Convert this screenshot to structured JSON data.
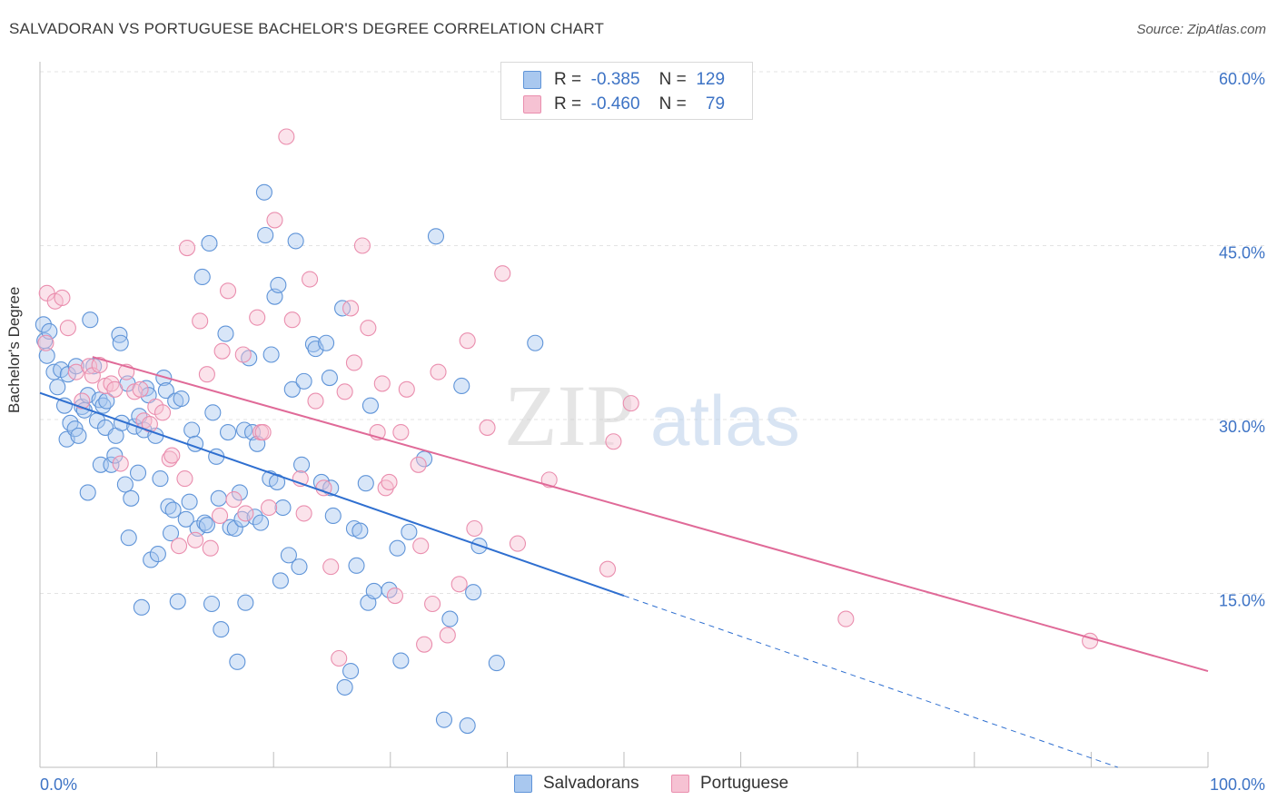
{
  "header": {
    "title": "SALVADORAN VS PORTUGUESE BACHELOR'S DEGREE CORRELATION CHART",
    "source": "Source: ZipAtlas.com"
  },
  "watermark": {
    "zip": "ZIP",
    "atlas": "atlas"
  },
  "legend": {
    "rows": [
      {
        "r_label": "R =",
        "r_value": "-0.385",
        "n_label": "N =",
        "n_value": "129"
      },
      {
        "r_label": "R =",
        "r_value": "-0.460",
        "n_label": "N =",
        "n_value": "79"
      }
    ],
    "bottom": [
      "Salvadorans",
      "Portuguese"
    ]
  },
  "colors": {
    "blue_fill": "#a9c8ef",
    "blue_stroke": "#5f94d8",
    "blue_line": "#2f6fd0",
    "pink_fill": "#f6c2d3",
    "pink_stroke": "#ea8eae",
    "pink_line": "#e06a98",
    "axis_text": "#3d73c5",
    "grid": "#e3e3e3"
  },
  "chart_data": {
    "type": "scatter",
    "title": "SALVADORAN VS PORTUGUESE BACHELOR'S DEGREE CORRELATION CHART",
    "xlabel": "",
    "ylabel": "Bachelor's Degree",
    "xlim": [
      0,
      100
    ],
    "ylim": [
      0,
      60
    ],
    "x_tick_labels": [
      "0.0%",
      "100.0%"
    ],
    "y_ticks": [
      15,
      30,
      45,
      60
    ],
    "y_tick_labels": [
      "15.0%",
      "30.0%",
      "45.0%",
      "60.0%"
    ],
    "grid": true,
    "legend_position": "top-center",
    "series": [
      {
        "name": "Salvadorans",
        "r": -0.385,
        "n": 129,
        "trend": {
          "x0": 0,
          "y0": 32.3,
          "x1": 50,
          "y1": 14.8,
          "dashed_to_x": 100,
          "dashed_to_y": -2.7
        },
        "points": [
          [
            0.3,
            38.2
          ],
          [
            0.4,
            36.8
          ],
          [
            0.6,
            35.5
          ],
          [
            0.8,
            37.6
          ],
          [
            1.2,
            34.1
          ],
          [
            1.5,
            32.8
          ],
          [
            1.8,
            34.3
          ],
          [
            2.1,
            31.2
          ],
          [
            2.4,
            33.9
          ],
          [
            2.3,
            28.3
          ],
          [
            2.6,
            29.7
          ],
          [
            3.0,
            29.2
          ],
          [
            3.1,
            34.6
          ],
          [
            3.3,
            28.6
          ],
          [
            3.6,
            31.1
          ],
          [
            3.8,
            30.8
          ],
          [
            4.1,
            32.1
          ],
          [
            4.1,
            23.7
          ],
          [
            4.3,
            38.6
          ],
          [
            4.6,
            34.6
          ],
          [
            4.9,
            29.9
          ],
          [
            5.1,
            31.7
          ],
          [
            5.2,
            26.1
          ],
          [
            5.4,
            31.2
          ],
          [
            5.6,
            29.3
          ],
          [
            5.7,
            31.6
          ],
          [
            6.1,
            26.1
          ],
          [
            6.4,
            26.9
          ],
          [
            6.5,
            28.6
          ],
          [
            6.8,
            37.3
          ],
          [
            6.9,
            36.6
          ],
          [
            7.0,
            29.7
          ],
          [
            7.3,
            24.4
          ],
          [
            7.5,
            33.1
          ],
          [
            7.6,
            19.8
          ],
          [
            7.8,
            23.2
          ],
          [
            8.1,
            29.4
          ],
          [
            8.4,
            25.4
          ],
          [
            8.5,
            30.3
          ],
          [
            8.7,
            13.8
          ],
          [
            8.9,
            29.1
          ],
          [
            9.1,
            32.7
          ],
          [
            9.3,
            32.1
          ],
          [
            9.5,
            17.9
          ],
          [
            9.9,
            28.6
          ],
          [
            10.1,
            18.4
          ],
          [
            10.3,
            24.9
          ],
          [
            10.6,
            33.6
          ],
          [
            10.8,
            32.5
          ],
          [
            11.0,
            22.5
          ],
          [
            11.2,
            20.2
          ],
          [
            11.4,
            22.2
          ],
          [
            11.6,
            31.6
          ],
          [
            11.8,
            14.3
          ],
          [
            12.1,
            31.8
          ],
          [
            12.5,
            21.4
          ],
          [
            12.8,
            22.9
          ],
          [
            13.0,
            29.1
          ],
          [
            13.3,
            27.9
          ],
          [
            13.5,
            20.6
          ],
          [
            13.9,
            42.3
          ],
          [
            14.1,
            21.1
          ],
          [
            14.3,
            20.9
          ],
          [
            14.5,
            45.2
          ],
          [
            14.7,
            14.1
          ],
          [
            14.8,
            30.6
          ],
          [
            15.1,
            26.8
          ],
          [
            15.3,
            23.2
          ],
          [
            15.5,
            11.9
          ],
          [
            15.9,
            37.4
          ],
          [
            16.1,
            28.9
          ],
          [
            16.3,
            20.7
          ],
          [
            16.7,
            20.6
          ],
          [
            16.9,
            9.1
          ],
          [
            17.1,
            23.7
          ],
          [
            17.3,
            21.4
          ],
          [
            17.5,
            29.1
          ],
          [
            17.6,
            14.2
          ],
          [
            17.9,
            35.3
          ],
          [
            18.2,
            28.9
          ],
          [
            18.4,
            21.6
          ],
          [
            18.6,
            27.9
          ],
          [
            18.9,
            21.1
          ],
          [
            19.2,
            49.6
          ],
          [
            19.3,
            45.9
          ],
          [
            19.7,
            24.9
          ],
          [
            19.8,
            35.6
          ],
          [
            20.1,
            40.6
          ],
          [
            20.3,
            24.6
          ],
          [
            20.4,
            41.6
          ],
          [
            20.6,
            16.1
          ],
          [
            20.8,
            22.4
          ],
          [
            21.3,
            18.3
          ],
          [
            21.6,
            32.6
          ],
          [
            21.9,
            45.4
          ],
          [
            22.2,
            17.3
          ],
          [
            22.4,
            26.1
          ],
          [
            22.6,
            33.3
          ],
          [
            23.4,
            36.5
          ],
          [
            23.6,
            36.1
          ],
          [
            24.1,
            24.6
          ],
          [
            24.5,
            36.6
          ],
          [
            24.8,
            33.6
          ],
          [
            24.9,
            24.1
          ],
          [
            25.1,
            21.7
          ],
          [
            25.9,
            39.6
          ],
          [
            26.1,
            6.9
          ],
          [
            26.6,
            8.3
          ],
          [
            26.9,
            20.6
          ],
          [
            27.1,
            17.4
          ],
          [
            27.4,
            20.4
          ],
          [
            27.9,
            24.5
          ],
          [
            28.1,
            14.2
          ],
          [
            28.3,
            31.2
          ],
          [
            28.6,
            15.2
          ],
          [
            29.9,
            15.3
          ],
          [
            30.6,
            18.9
          ],
          [
            30.9,
            9.2
          ],
          [
            31.6,
            20.3
          ],
          [
            32.9,
            26.6
          ],
          [
            33.9,
            45.8
          ],
          [
            34.6,
            4.1
          ],
          [
            35.1,
            12.8
          ],
          [
            36.6,
            3.6
          ],
          [
            37.1,
            15.1
          ],
          [
            37.6,
            19.1
          ],
          [
            39.1,
            9.0
          ],
          [
            42.4,
            36.6
          ],
          [
            36.1,
            32.9
          ]
        ]
      },
      {
        "name": "Portuguese",
        "r": -0.46,
        "n": 79,
        "trend": {
          "x0": 4.5,
          "y0": 35.4,
          "x1": 100,
          "y1": 8.3
        },
        "points": [
          [
            0.5,
            36.6
          ],
          [
            0.6,
            40.9
          ],
          [
            1.3,
            40.2
          ],
          [
            1.9,
            40.5
          ],
          [
            2.4,
            37.9
          ],
          [
            3.1,
            34.1
          ],
          [
            3.6,
            31.6
          ],
          [
            4.2,
            34.6
          ],
          [
            4.5,
            33.8
          ],
          [
            5.1,
            34.7
          ],
          [
            5.6,
            32.9
          ],
          [
            6.1,
            33.1
          ],
          [
            6.4,
            32.6
          ],
          [
            6.9,
            26.2
          ],
          [
            7.4,
            34.1
          ],
          [
            8.1,
            32.4
          ],
          [
            8.6,
            32.6
          ],
          [
            8.9,
            29.9
          ],
          [
            9.4,
            29.6
          ],
          [
            9.9,
            31.1
          ],
          [
            10.5,
            30.6
          ],
          [
            11.1,
            26.6
          ],
          [
            11.3,
            26.9
          ],
          [
            11.9,
            19.1
          ],
          [
            12.4,
            24.9
          ],
          [
            12.6,
            44.8
          ],
          [
            13.3,
            19.6
          ],
          [
            13.7,
            38.5
          ],
          [
            14.3,
            33.9
          ],
          [
            14.6,
            18.9
          ],
          [
            15.4,
            21.7
          ],
          [
            15.6,
            35.9
          ],
          [
            16.1,
            41.1
          ],
          [
            16.6,
            23.1
          ],
          [
            17.4,
            35.6
          ],
          [
            17.6,
            21.9
          ],
          [
            18.6,
            38.8
          ],
          [
            18.9,
            28.9
          ],
          [
            19.1,
            28.9
          ],
          [
            19.6,
            22.4
          ],
          [
            20.1,
            47.2
          ],
          [
            21.1,
            54.4
          ],
          [
            21.6,
            38.6
          ],
          [
            22.3,
            24.9
          ],
          [
            22.6,
            21.9
          ],
          [
            23.1,
            42.1
          ],
          [
            23.6,
            31.6
          ],
          [
            24.3,
            24.1
          ],
          [
            24.9,
            17.3
          ],
          [
            25.6,
            9.4
          ],
          [
            26.1,
            32.4
          ],
          [
            26.6,
            39.6
          ],
          [
            26.9,
            34.9
          ],
          [
            27.6,
            45.0
          ],
          [
            28.1,
            37.9
          ],
          [
            28.9,
            28.9
          ],
          [
            29.3,
            33.1
          ],
          [
            29.6,
            24.1
          ],
          [
            29.9,
            24.6
          ],
          [
            30.4,
            14.8
          ],
          [
            30.9,
            28.9
          ],
          [
            31.4,
            32.6
          ],
          [
            32.4,
            26.1
          ],
          [
            32.6,
            19.1
          ],
          [
            32.9,
            10.6
          ],
          [
            33.6,
            14.1
          ],
          [
            34.1,
            34.1
          ],
          [
            34.9,
            11.4
          ],
          [
            35.9,
            15.8
          ],
          [
            36.6,
            36.8
          ],
          [
            37.2,
            20.6
          ],
          [
            38.3,
            29.3
          ],
          [
            39.6,
            42.6
          ],
          [
            40.9,
            19.3
          ],
          [
            43.6,
            24.8
          ],
          [
            48.6,
            17.1
          ],
          [
            49.1,
            28.1
          ],
          [
            50.6,
            31.4
          ],
          [
            69.0,
            12.8
          ],
          [
            89.9,
            10.9
          ]
        ]
      }
    ]
  }
}
